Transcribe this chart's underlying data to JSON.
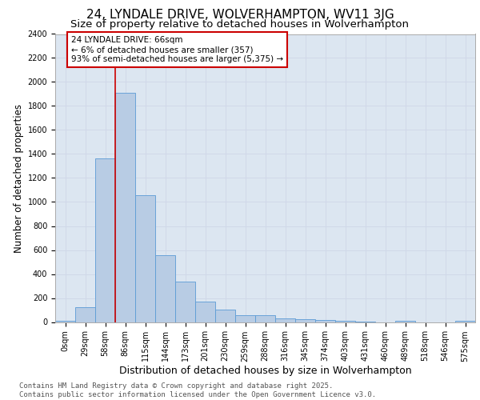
{
  "title_line1": "24, LYNDALE DRIVE, WOLVERHAMPTON, WV11 3JG",
  "title_line2": "Size of property relative to detached houses in Wolverhampton",
  "xlabel": "Distribution of detached houses by size in Wolverhampton",
  "ylabel": "Number of detached properties",
  "footer_line1": "Contains HM Land Registry data © Crown copyright and database right 2025.",
  "footer_line2": "Contains public sector information licensed under the Open Government Licence v3.0.",
  "bar_labels": [
    "0sqm",
    "29sqm",
    "58sqm",
    "86sqm",
    "115sqm",
    "144sqm",
    "173sqm",
    "201sqm",
    "230sqm",
    "259sqm",
    "288sqm",
    "316sqm",
    "345sqm",
    "374sqm",
    "403sqm",
    "431sqm",
    "460sqm",
    "489sqm",
    "518sqm",
    "546sqm",
    "575sqm"
  ],
  "bar_values": [
    10,
    125,
    1360,
    1910,
    1055,
    555,
    335,
    170,
    105,
    60,
    55,
    30,
    25,
    20,
    10,
    5,
    0,
    10,
    0,
    0,
    10
  ],
  "bar_color": "#b8cce4",
  "bar_edge_color": "#5b9bd5",
  "grid_color": "#d0d8e8",
  "background_color": "#dce6f1",
  "vline_pos": 2.5,
  "vline_color": "#cc0000",
  "annotation_text": "24 LYNDALE DRIVE: 66sqm\n← 6% of detached houses are smaller (357)\n93% of semi-detached houses are larger (5,375) →",
  "annotation_box_color": "#cc0000",
  "ylim": [
    0,
    2400
  ],
  "yticks": [
    0,
    200,
    400,
    600,
    800,
    1000,
    1200,
    1400,
    1600,
    1800,
    2000,
    2200,
    2400
  ],
  "title_fontsize": 11,
  "subtitle_fontsize": 9.5,
  "annotation_fontsize": 7.5,
  "xlabel_fontsize": 9,
  "ylabel_fontsize": 8.5,
  "tick_fontsize": 7,
  "footer_fontsize": 6.5
}
